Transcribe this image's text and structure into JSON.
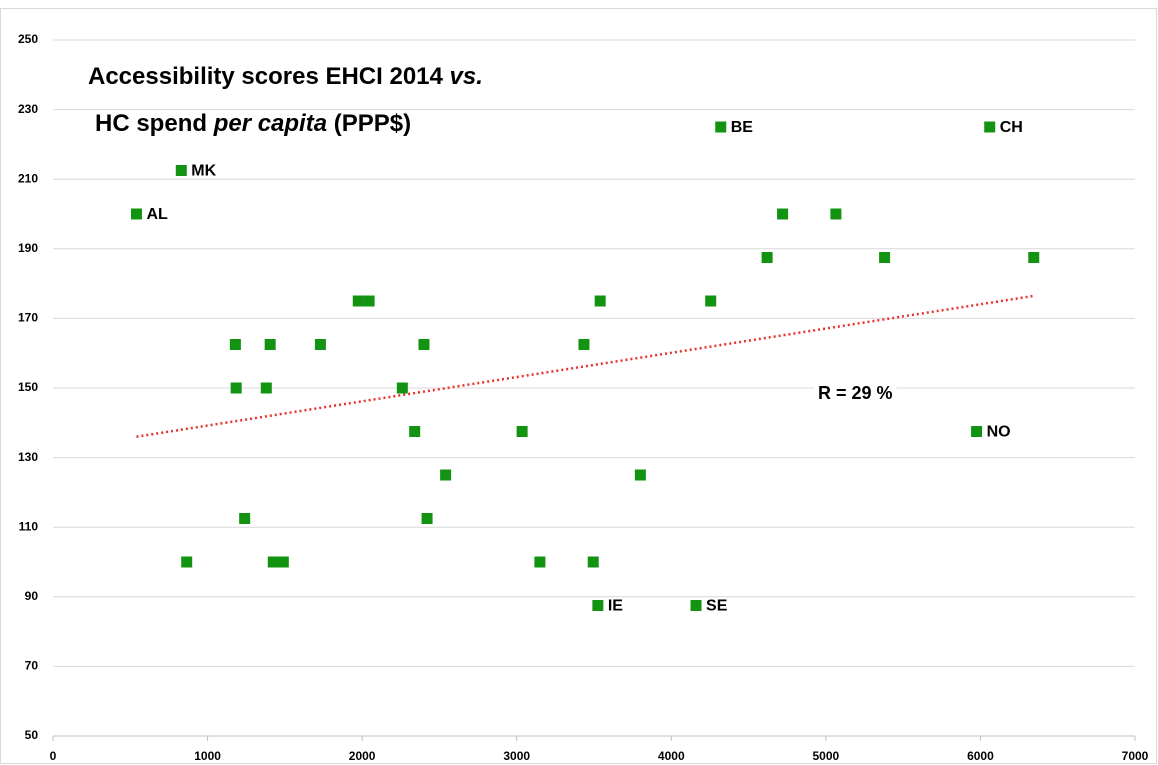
{
  "chart_data": {
    "type": "scatter",
    "title_lines": [
      [
        {
          "text": "Accessibility scores EHCI 2014 "
        },
        {
          "text": "vs.",
          "style": "italic"
        }
      ],
      [
        {
          "text": "HC spend "
        },
        {
          "text": "per capita",
          "style": "italic"
        },
        {
          "text": " (PPP$)"
        }
      ]
    ],
    "annotation": "R = 29 %",
    "color": "#129412",
    "x": [
      540,
      830,
      4320,
      6060,
      4720,
      5065,
      4620,
      5380,
      6345,
      1975,
      2045,
      3540,
      4255,
      1180,
      1405,
      1730,
      2400,
      3435,
      1185,
      1380,
      2260,
      2340,
      3035,
      5975,
      2540,
      3800,
      1240,
      2420,
      865,
      1425,
      1490,
      3150,
      3495,
      3525,
      4160
    ],
    "values": [
      200,
      212.5,
      225,
      225,
      200,
      200,
      187.5,
      187.5,
      187.5,
      175,
      175,
      175,
      175,
      162.5,
      162.5,
      162.5,
      162.5,
      162.5,
      150,
      150,
      150,
      137.5,
      137.5,
      137.5,
      125,
      125,
      112.5,
      112.5,
      100,
      100,
      100,
      100,
      100,
      87.5,
      87.5
    ],
    "labels": [
      "AL",
      "MK",
      "BE",
      "CH",
      null,
      null,
      null,
      null,
      null,
      null,
      null,
      null,
      null,
      null,
      null,
      null,
      null,
      null,
      null,
      null,
      null,
      null,
      null,
      "NO",
      null,
      null,
      null,
      null,
      null,
      null,
      null,
      null,
      null,
      "IE",
      "SE"
    ],
    "trendline": {
      "color": "#e8322c",
      "x": [
        540,
        6350
      ],
      "values": [
        136,
        176.5
      ]
    },
    "xlim": [
      0,
      7000
    ],
    "xticks": [
      0,
      1000,
      2000,
      3000,
      4000,
      5000,
      6000,
      7000
    ],
    "ylim": [
      50,
      250
    ],
    "yticks": [
      50,
      70,
      90,
      110,
      130,
      150,
      170,
      190,
      210,
      230,
      250
    ],
    "grid": true
  }
}
